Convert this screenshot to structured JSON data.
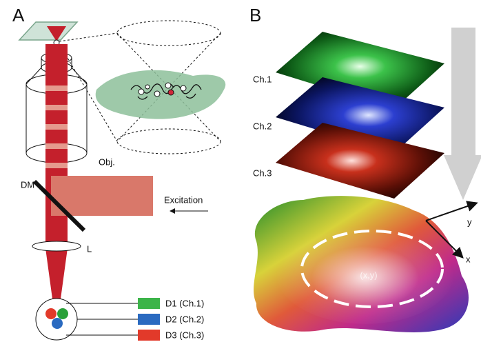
{
  "panels": {
    "a": {
      "label": "A",
      "objective": "Obj.",
      "mirror": "DM",
      "excitation": "Excitation",
      "lens": "L",
      "detectors": [
        "D1 (Ch.1)",
        "D2 (Ch.2)",
        "D3 (Ch.3)"
      ]
    },
    "b": {
      "label": "B",
      "channels": [
        "Ch.1",
        "Ch.2",
        "Ch.3"
      ],
      "axis_y": "y",
      "axis_x": "x",
      "position": "(x,y)"
    }
  }
}
